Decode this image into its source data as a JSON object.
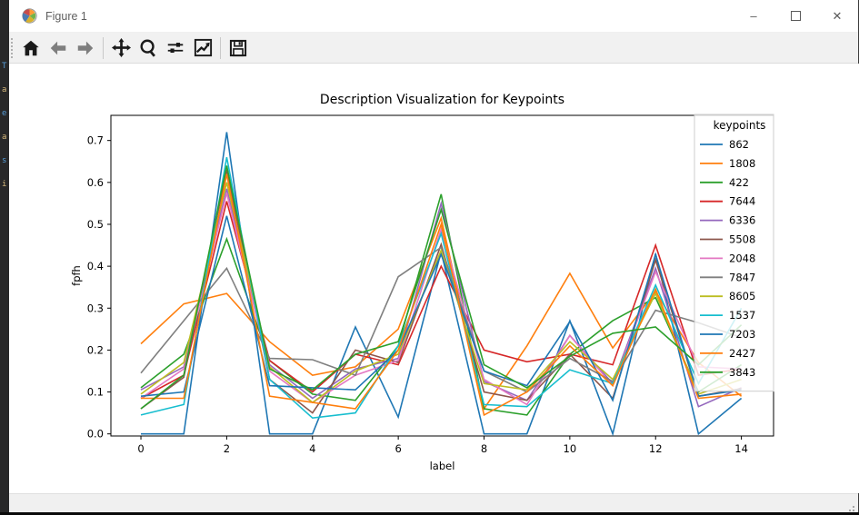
{
  "desktop": {
    "edge_text_fragments": [
      "T",
      "a",
      "e",
      "a",
      "s",
      "i"
    ]
  },
  "window": {
    "title": "Figure 1",
    "controls": {
      "minimize_label": "–",
      "close_label": "✕"
    }
  },
  "toolbar": {
    "buttons": [
      {
        "name": "home",
        "icon": "home-icon"
      },
      {
        "name": "back",
        "icon": "arrow-left-icon"
      },
      {
        "name": "forward",
        "icon": "arrow-right-icon"
      },
      {
        "name": "pan",
        "icon": "move-arrows-icon"
      },
      {
        "name": "zoom",
        "icon": "magnifier-icon"
      },
      {
        "name": "configure-subplots",
        "icon": "sliders-icon"
      },
      {
        "name": "edit-parameters",
        "icon": "line-chart-icon"
      },
      {
        "name": "save",
        "icon": "floppy-disk-icon"
      }
    ]
  },
  "chart_data": {
    "type": "line",
    "title": "Description Visualization for Keypoints",
    "xlabel": "label",
    "ylabel": "fpfh",
    "x": [
      0,
      1,
      2,
      3,
      4,
      5,
      6,
      7,
      8,
      9,
      10,
      11,
      12,
      13,
      14
    ],
    "xtick_labels": [
      "0",
      "2",
      "4",
      "6",
      "8",
      "10",
      "12",
      "14"
    ],
    "xticks": [
      0,
      2,
      4,
      6,
      8,
      10,
      12,
      14
    ],
    "ytick_labels": [
      "0.0",
      "0.1",
      "0.2",
      "0.3",
      "0.4",
      "0.5",
      "0.6",
      "0.7"
    ],
    "yticks": [
      0,
      0.1,
      0.2,
      0.3,
      0.4,
      0.5,
      0.6,
      0.7
    ],
    "xlim": [
      -0.7,
      14.75
    ],
    "ylim": [
      -0.005,
      0.76
    ],
    "grid": false,
    "legend_title": "keypoints",
    "legend_position": "upper right",
    "series": [
      {
        "name": "862",
        "color": "#1f77b4",
        "values": [
          0.0,
          0.0,
          0.72,
          0.0,
          0.0,
          0.255,
          0.04,
          0.435,
          0.0,
          0.0,
          0.27,
          0.0,
          0.43,
          0.0,
          0.085
        ]
      },
      {
        "name": "1808",
        "color": "#ff7f0e",
        "values": [
          0.215,
          0.31,
          0.335,
          0.22,
          0.14,
          0.16,
          0.25,
          0.515,
          0.06,
          0.21,
          0.383,
          0.205,
          0.34,
          0.17,
          0.09
        ]
      },
      {
        "name": "422",
        "color": "#2ca02c",
        "values": [
          0.11,
          0.19,
          0.465,
          0.175,
          0.095,
          0.08,
          0.21,
          0.572,
          0.06,
          0.045,
          0.19,
          0.27,
          0.325,
          0.1,
          0.165
        ]
      },
      {
        "name": "7644",
        "color": "#d62728",
        "values": [
          0.085,
          0.14,
          0.555,
          0.175,
          0.1,
          0.19,
          0.165,
          0.4,
          0.2,
          0.172,
          0.19,
          0.165,
          0.45,
          0.14,
          0.155
        ]
      },
      {
        "name": "6336",
        "color": "#9467bd",
        "values": [
          0.105,
          0.16,
          0.585,
          0.165,
          0.085,
          0.155,
          0.18,
          0.55,
          0.125,
          0.08,
          0.235,
          0.12,
          0.395,
          0.065,
          0.11
        ]
      },
      {
        "name": "5508",
        "color": "#8c564b",
        "values": [
          0.06,
          0.135,
          0.63,
          0.13,
          0.05,
          0.2,
          0.17,
          0.452,
          0.1,
          0.08,
          0.19,
          0.085,
          0.415,
          0.09,
          0.108
        ]
      },
      {
        "name": "2048",
        "color": "#e377c2",
        "values": [
          0.085,
          0.155,
          0.575,
          0.15,
          0.075,
          0.14,
          0.175,
          0.488,
          0.13,
          0.07,
          0.235,
          0.115,
          0.387,
          0.16,
          0.155
        ]
      },
      {
        "name": "7847",
        "color": "#7f7f7f",
        "values": [
          0.145,
          0.27,
          0.395,
          0.18,
          0.177,
          0.14,
          0.375,
          0.445,
          0.15,
          0.1,
          0.18,
          0.125,
          0.295,
          0.265,
          0.23
        ]
      },
      {
        "name": "8605",
        "color": "#bcbd22",
        "values": [
          0.095,
          0.17,
          0.6,
          0.16,
          0.075,
          0.15,
          0.19,
          0.438,
          0.12,
          0.105,
          0.22,
          0.13,
          0.335,
          0.095,
          0.13
        ]
      },
      {
        "name": "1537",
        "color": "#17becf",
        "values": [
          0.045,
          0.07,
          0.66,
          0.13,
          0.038,
          0.05,
          0.21,
          0.478,
          0.07,
          0.065,
          0.153,
          0.12,
          0.355,
          0.12,
          0.3
        ]
      },
      {
        "name": "7203",
        "color": "#1f77b4",
        "values": [
          0.09,
          0.1,
          0.52,
          0.115,
          0.11,
          0.105,
          0.2,
          0.428,
          0.15,
          0.115,
          0.268,
          0.08,
          0.428,
          0.09,
          0.105
        ]
      },
      {
        "name": "2427",
        "color": "#ff7f0e",
        "values": [
          0.085,
          0.085,
          0.62,
          0.09,
          0.075,
          0.06,
          0.2,
          0.5,
          0.045,
          0.1,
          0.21,
          0.115,
          0.345,
          0.085,
          0.095
        ]
      },
      {
        "name": "3843",
        "color": "#2ca02c",
        "values": [
          0.06,
          0.14,
          0.64,
          0.155,
          0.105,
          0.19,
          0.22,
          0.535,
          0.165,
          0.11,
          0.185,
          0.24,
          0.255,
          0.165,
          0.26
        ]
      }
    ]
  },
  "colors": {
    "window_bg": "#ffffff",
    "toolbar_bg": "#f1f1f1",
    "statusbar_bg": "#f0f0f0",
    "axis_color": "#000000",
    "legend_border": "#cccccc"
  }
}
